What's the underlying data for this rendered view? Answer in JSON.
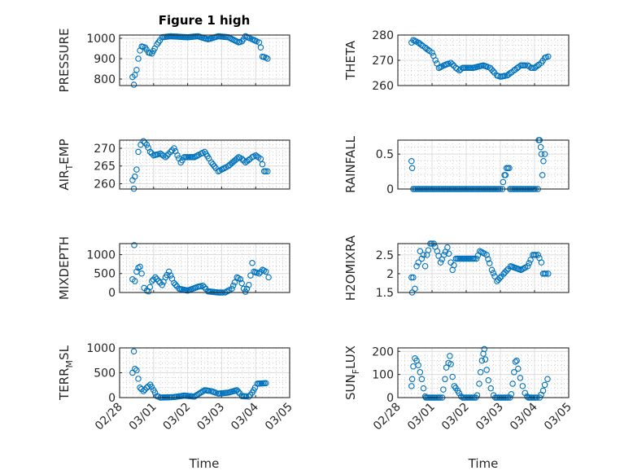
{
  "chart_data": {
    "type": "scatter",
    "title": "Figure 1 high",
    "xlabel": "Time",
    "xlim": [
      0,
      5
    ],
    "xticks": [
      0,
      1,
      2,
      3,
      4,
      5
    ],
    "xtick_labels": [
      "02/28",
      "03/01",
      "03/02",
      "03/03",
      "03/04",
      "03/05"
    ],
    "x_units": "days since 02/28 00:00",
    "grid": "major and minor",
    "marker": "open circle",
    "series_color": "#0072BD",
    "panels": [
      {
        "ylabel": {
          "main": "PRESSURE",
          "sub": "",
          "rest": ""
        },
        "ylim": [
          768,
          1016
        ],
        "yticks": [
          800,
          900,
          1000
        ],
        "ytick_labels": [
          "800",
          "900",
          "1000"
        ],
        "points": [
          [
            0.38,
            810
          ],
          [
            0.42,
            772
          ],
          [
            0.45,
            820
          ],
          [
            0.5,
            845
          ],
          [
            0.55,
            900
          ],
          [
            0.6,
            940
          ],
          [
            0.65,
            960
          ],
          [
            0.75,
            955
          ],
          [
            0.85,
            930
          ],
          [
            0.95,
            925
          ],
          [
            1.1,
            970
          ],
          [
            1.25,
            1005
          ],
          [
            1.5,
            1010
          ],
          [
            2.0,
            1005
          ],
          [
            2.3,
            1010
          ],
          [
            2.6,
            995
          ],
          [
            2.9,
            1010
          ],
          [
            3.2,
            1005
          ],
          [
            3.5,
            980
          ],
          [
            3.6,
            985
          ],
          [
            3.7,
            1010
          ],
          [
            3.9,
            995
          ],
          [
            4.1,
            980
          ],
          [
            4.15,
            955
          ],
          [
            4.2,
            910
          ],
          [
            4.3,
            905
          ],
          [
            4.35,
            900
          ]
        ]
      },
      {
        "ylabel": {
          "main": "THETA",
          "sub": "",
          "rest": ""
        },
        "ylim": [
          260,
          280
        ],
        "yticks": [
          260,
          270,
          280
        ],
        "ytick_labels": [
          "260",
          "270",
          "280"
        ],
        "points": [
          [
            0.4,
            277
          ],
          [
            0.45,
            278
          ],
          [
            0.6,
            277
          ],
          [
            0.8,
            275
          ],
          [
            1.0,
            273
          ],
          [
            1.1,
            270
          ],
          [
            1.2,
            267
          ],
          [
            1.35,
            268
          ],
          [
            1.55,
            269
          ],
          [
            1.7,
            267
          ],
          [
            1.8,
            266
          ],
          [
            1.9,
            267
          ],
          [
            2.2,
            267
          ],
          [
            2.5,
            268
          ],
          [
            2.7,
            267
          ],
          [
            2.9,
            264
          ],
          [
            3.0,
            263.5
          ],
          [
            3.2,
            264
          ],
          [
            3.4,
            266
          ],
          [
            3.6,
            268
          ],
          [
            3.8,
            268
          ],
          [
            3.9,
            267
          ],
          [
            4.0,
            267
          ],
          [
            4.2,
            269
          ],
          [
            4.3,
            271
          ],
          [
            4.4,
            271.5
          ]
        ]
      },
      {
        "ylabel": {
          "main": "AIR",
          "sub": "T",
          "rest": "EMP"
        },
        "ylim": [
          258.5,
          272.3
        ],
        "yticks": [
          260,
          265,
          270
        ],
        "ytick_labels": [
          "260",
          "265",
          "270"
        ],
        "points": [
          [
            0.38,
            261
          ],
          [
            0.42,
            258.6
          ],
          [
            0.45,
            262
          ],
          [
            0.5,
            264
          ],
          [
            0.55,
            269
          ],
          [
            0.62,
            271
          ],
          [
            0.7,
            272
          ],
          [
            0.8,
            271
          ],
          [
            0.9,
            269
          ],
          [
            1.0,
            268
          ],
          [
            1.2,
            268.5
          ],
          [
            1.35,
            267.5
          ],
          [
            1.5,
            269
          ],
          [
            1.6,
            270
          ],
          [
            1.7,
            268
          ],
          [
            1.8,
            266
          ],
          [
            1.9,
            267.5
          ],
          [
            2.2,
            267.5
          ],
          [
            2.4,
            268.5
          ],
          [
            2.5,
            269
          ],
          [
            2.7,
            266
          ],
          [
            2.9,
            263.5
          ],
          [
            3.0,
            264
          ],
          [
            3.2,
            265
          ],
          [
            3.5,
            267.5
          ],
          [
            3.6,
            267
          ],
          [
            3.7,
            266
          ],
          [
            3.9,
            267.5
          ],
          [
            4.0,
            268
          ],
          [
            4.15,
            267
          ],
          [
            4.2,
            265.5
          ],
          [
            4.25,
            263.5
          ],
          [
            4.35,
            263.5
          ]
        ]
      },
      {
        "ylabel": {
          "main": "RAINFALL",
          "sub": "",
          "rest": ""
        },
        "ylim": [
          0,
          0.7
        ],
        "yticks": [
          0,
          0.5
        ],
        "ytick_labels": [
          "0",
          "0.5"
        ],
        "points": [
          [
            0.4,
            0.4
          ],
          [
            0.42,
            0.3
          ],
          [
            0.45,
            0
          ],
          [
            3.06,
            0
          ],
          [
            3.08,
            0.1
          ],
          [
            3.12,
            0.2
          ],
          [
            3.15,
            0.2
          ],
          [
            3.18,
            0.3
          ],
          [
            3.22,
            0.3
          ],
          [
            3.26,
            0.3
          ],
          [
            3.28,
            0
          ],
          [
            4.1,
            0
          ],
          [
            4.12,
            0.7
          ],
          [
            4.15,
            0.7
          ],
          [
            4.18,
            0.6
          ],
          [
            4.2,
            0.5
          ],
          [
            4.23,
            0.2
          ],
          [
            4.26,
            0.4
          ],
          [
            4.3,
            0.5
          ]
        ]
      },
      {
        "ylabel": {
          "main": "MIXDEPTH",
          "sub": "",
          "rest": ""
        },
        "ylim": [
          0,
          1290
        ],
        "yticks": [
          0,
          500,
          1000
        ],
        "ytick_labels": [
          "0",
          "500",
          "1000"
        ],
        "points": [
          [
            0.38,
            350
          ],
          [
            0.43,
            1250
          ],
          [
            0.45,
            300
          ],
          [
            0.5,
            550
          ],
          [
            0.55,
            650
          ],
          [
            0.6,
            680
          ],
          [
            0.65,
            500
          ],
          [
            0.72,
            120
          ],
          [
            0.8,
            50
          ],
          [
            0.85,
            30
          ],
          [
            0.95,
            300
          ],
          [
            1.05,
            400
          ],
          [
            1.15,
            300
          ],
          [
            1.25,
            200
          ],
          [
            1.35,
            400
          ],
          [
            1.45,
            550
          ],
          [
            1.5,
            450
          ],
          [
            1.6,
            250
          ],
          [
            1.75,
            100
          ],
          [
            2.0,
            50
          ],
          [
            2.3,
            150
          ],
          [
            2.45,
            180
          ],
          [
            2.6,
            30
          ],
          [
            2.9,
            0
          ],
          [
            3.1,
            0
          ],
          [
            3.3,
            100
          ],
          [
            3.45,
            400
          ],
          [
            3.55,
            350
          ],
          [
            3.65,
            100
          ],
          [
            3.7,
            20
          ],
          [
            3.8,
            200
          ],
          [
            3.85,
            450
          ],
          [
            3.9,
            780
          ],
          [
            3.95,
            550
          ],
          [
            4.1,
            500
          ],
          [
            4.2,
            600
          ],
          [
            4.3,
            550
          ],
          [
            4.38,
            400
          ]
        ]
      },
      {
        "ylabel": {
          "main": "H2OMIXRA",
          "sub": "",
          "rest": ""
        },
        "ylim": [
          1.5,
          2.8
        ],
        "yticks": [
          1.5,
          2,
          2.5
        ],
        "ytick_labels": [
          "1.5",
          "2",
          "2.5"
        ],
        "points": [
          [
            0.4,
            1.9
          ],
          [
            0.42,
            1.5
          ],
          [
            0.45,
            1.9
          ],
          [
            0.5,
            1.6
          ],
          [
            0.55,
            2.2
          ],
          [
            0.6,
            2.3
          ],
          [
            0.65,
            2.6
          ],
          [
            0.7,
            2.4
          ],
          [
            0.75,
            2.5
          ],
          [
            0.8,
            2.2
          ],
          [
            0.85,
            2.5
          ],
          [
            0.95,
            2.8
          ],
          [
            1.05,
            2.8
          ],
          [
            1.15,
            2.6
          ],
          [
            1.25,
            2.3
          ],
          [
            1.35,
            2.5
          ],
          [
            1.45,
            2.7
          ],
          [
            1.55,
            2.3
          ],
          [
            1.6,
            2.1
          ],
          [
            1.7,
            2.4
          ],
          [
            2.3,
            2.4
          ],
          [
            2.4,
            2.6
          ],
          [
            2.6,
            2.5
          ],
          [
            2.75,
            2.1
          ],
          [
            2.9,
            1.8
          ],
          [
            3.1,
            2.0
          ],
          [
            3.3,
            2.2
          ],
          [
            3.6,
            2.1
          ],
          [
            3.8,
            2.2
          ],
          [
            3.95,
            2.5
          ],
          [
            4.1,
            2.5
          ],
          [
            4.2,
            2.3
          ],
          [
            4.25,
            2.0
          ],
          [
            4.4,
            2.0
          ]
        ]
      },
      {
        "ylabel": {
          "main": "TERR",
          "sub": "M",
          "rest": "SL"
        },
        "ylim": [
          0,
          1000
        ],
        "yticks": [
          0,
          500,
          1000
        ],
        "ytick_labels": [
          "0",
          "500",
          "1000"
        ],
        "points": [
          [
            0.38,
            500
          ],
          [
            0.42,
            930
          ],
          [
            0.45,
            580
          ],
          [
            0.5,
            550
          ],
          [
            0.55,
            380
          ],
          [
            0.6,
            200
          ],
          [
            0.7,
            130
          ],
          [
            0.8,
            200
          ],
          [
            0.9,
            260
          ],
          [
            1.0,
            150
          ],
          [
            1.1,
            30
          ],
          [
            1.2,
            0
          ],
          [
            1.6,
            10
          ],
          [
            1.9,
            40
          ],
          [
            2.2,
            20
          ],
          [
            2.5,
            150
          ],
          [
            2.7,
            130
          ],
          [
            2.9,
            80
          ],
          [
            3.2,
            100
          ],
          [
            3.45,
            150
          ],
          [
            3.6,
            30
          ],
          [
            3.8,
            20
          ],
          [
            3.9,
            100
          ],
          [
            4.05,
            280
          ],
          [
            4.3,
            290
          ]
        ]
      },
      {
        "ylabel": {
          "main": "SUN",
          "sub": "F",
          "rest": "LUX"
        },
        "ylim": [
          0,
          215
        ],
        "yticks": [
          0,
          100,
          200
        ],
        "ytick_labels": [
          "0",
          "100",
          "200"
        ],
        "points": [
          [
            0.4,
            50
          ],
          [
            0.42,
            80
          ],
          [
            0.45,
            135
          ],
          [
            0.5,
            170
          ],
          [
            0.55,
            160
          ],
          [
            0.6,
            140
          ],
          [
            0.65,
            110
          ],
          [
            0.7,
            80
          ],
          [
            0.75,
            40
          ],
          [
            0.8,
            5
          ],
          [
            0.82,
            0
          ],
          [
            1.3,
            0
          ],
          [
            1.33,
            35
          ],
          [
            1.38,
            80
          ],
          [
            1.42,
            130
          ],
          [
            1.48,
            150
          ],
          [
            1.52,
            180
          ],
          [
            1.55,
            145
          ],
          [
            1.6,
            90
          ],
          [
            1.65,
            50
          ],
          [
            1.75,
            30
          ],
          [
            1.85,
            5
          ],
          [
            1.9,
            0
          ],
          [
            2.28,
            0
          ],
          [
            2.32,
            10
          ],
          [
            2.38,
            60
          ],
          [
            2.42,
            110
          ],
          [
            2.46,
            160
          ],
          [
            2.5,
            190
          ],
          [
            2.53,
            210
          ],
          [
            2.56,
            165
          ],
          [
            2.6,
            120
          ],
          [
            2.65,
            75
          ],
          [
            2.72,
            40
          ],
          [
            2.8,
            10
          ],
          [
            2.85,
            0
          ],
          [
            3.28,
            0
          ],
          [
            3.32,
            15
          ],
          [
            3.36,
            60
          ],
          [
            3.4,
            110
          ],
          [
            3.44,
            155
          ],
          [
            3.48,
            160
          ],
          [
            3.52,
            125
          ],
          [
            3.58,
            85
          ],
          [
            3.65,
            50
          ],
          [
            3.72,
            20
          ],
          [
            3.78,
            5
          ],
          [
            3.82,
            0
          ],
          [
            4.15,
            0
          ],
          [
            4.25,
            30
          ],
          [
            4.3,
            55
          ],
          [
            4.38,
            80
          ]
        ]
      }
    ]
  }
}
